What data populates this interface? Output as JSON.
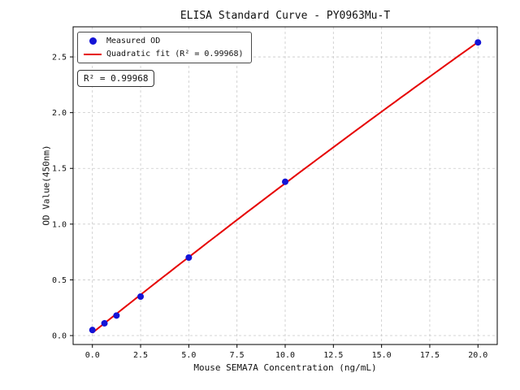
{
  "chart_data": {
    "type": "scatter",
    "title": "ELISA Standard Curve - PY0963Mu-T",
    "xlabel": "Mouse SEMA7A Concentration (ng/mL)",
    "ylabel": "OD Value(450nm)",
    "x": [
      0,
      0.625,
      1.25,
      2.5,
      5,
      10,
      20
    ],
    "series": [
      {
        "name": "Measured OD",
        "type": "scatter",
        "color": "#1414d6",
        "values": [
          0.05,
          0.11,
          0.18,
          0.35,
          0.7,
          1.38,
          2.63
        ]
      },
      {
        "name": "Quadratic fit (R² = 0.99968)",
        "type": "line",
        "color": "#e60000",
        "fit": "quadratic"
      }
    ],
    "annotation": "R² = 0.99968",
    "r_squared": 0.99968,
    "xticks": [
      0.0,
      2.5,
      5.0,
      7.5,
      10.0,
      12.5,
      15.0,
      17.5,
      20.0
    ],
    "xtick_labels": [
      "0.0",
      "2.5",
      "5.0",
      "7.5",
      "10.0",
      "12.5",
      "15.0",
      "17.5",
      "20.0"
    ],
    "yticks": [
      0.0,
      0.5,
      1.0,
      1.5,
      2.0,
      2.5
    ],
    "ytick_labels": [
      "0.0",
      "0.5",
      "1.0",
      "1.5",
      "2.0",
      "2.5"
    ],
    "xlim": [
      -1,
      21
    ],
    "ylim": [
      -0.08,
      2.77
    ],
    "grid": true,
    "grid_style": "dashed",
    "grid_color": "#c9c9c9",
    "axis_color": "#000000",
    "legend_position": "upper left"
  }
}
